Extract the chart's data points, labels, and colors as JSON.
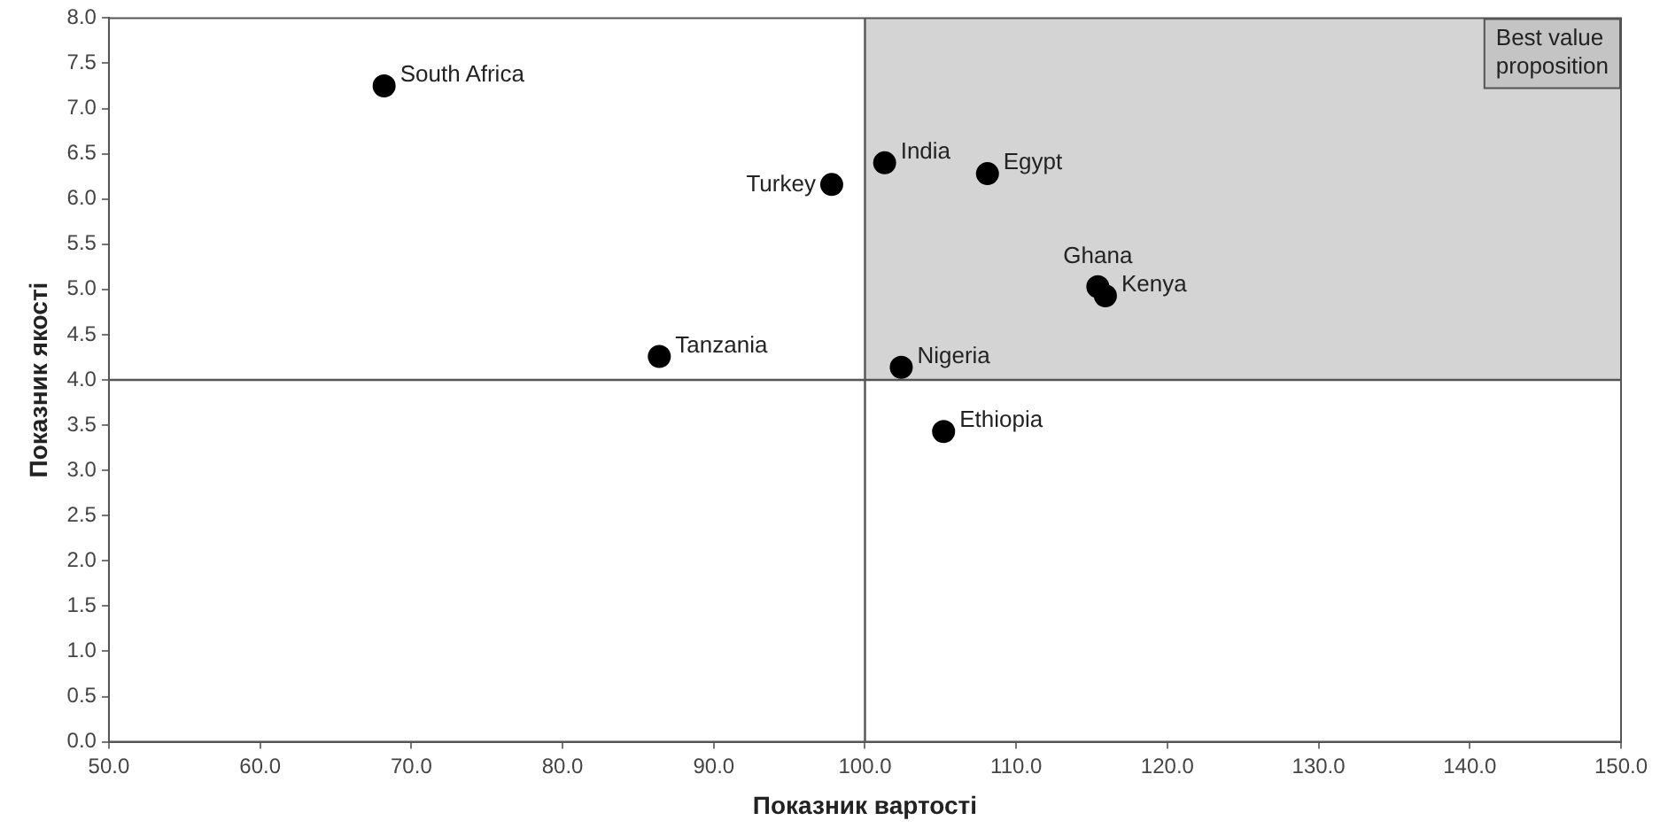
{
  "chart_data": {
    "type": "scatter",
    "xlabel": "Показник вартості",
    "ylabel": "Показник якості",
    "x": [
      68.2,
      86.4,
      97.8,
      101.3,
      108.1,
      115.4,
      115.9,
      102.4,
      105.2
    ],
    "series": [
      {
        "color": "#000000",
        "values": [
          7.25,
          4.26,
          6.16,
          6.4,
          6.28,
          5.03,
          4.93,
          4.14,
          3.43
        ]
      }
    ],
    "annotations": [
      {
        "text": "South Africa",
        "x": 68.2,
        "y": 7.25
      },
      {
        "text": "Tanzania",
        "x": 86.4,
        "y": 4.26
      },
      {
        "text": "Turkey",
        "x": 97.8,
        "y": 6.16
      },
      {
        "text": "India",
        "x": 101.3,
        "y": 6.4
      },
      {
        "text": "Egypt",
        "x": 108.1,
        "y": 6.28
      },
      {
        "text": "Ghana",
        "x": 115.4,
        "y": 5.03
      },
      {
        "text": "Kenya",
        "x": 115.9,
        "y": 4.93
      },
      {
        "text": "Nigeria",
        "x": 102.4,
        "y": 4.14
      },
      {
        "text": "Ethiopia",
        "x": 105.2,
        "y": 3.43
      }
    ],
    "ref_lines": [
      {
        "axis": "x",
        "value": 100,
        "color": "#555555"
      },
      {
        "axis": "y",
        "value": 4,
        "color": "#555555"
      }
    ],
    "bands": [
      {
        "axis": "x",
        "from": 100,
        "to": 150,
        "label": "Best value proposition",
        "color": "#d4d4d4"
      }
    ],
    "xlim": [
      50,
      150
    ],
    "xticks": [
      {
        "value": 50,
        "label": "50.0"
      },
      {
        "value": 60,
        "label": "60.0"
      },
      {
        "value": 70,
        "label": "70.0"
      },
      {
        "value": 80,
        "label": "80.0"
      },
      {
        "value": 90,
        "label": "90.0"
      },
      {
        "value": 100,
        "label": "100.0"
      },
      {
        "value": 110,
        "label": "110.0"
      },
      {
        "value": 120,
        "label": "120.0"
      },
      {
        "value": 130,
        "label": "130.0"
      },
      {
        "value": 140,
        "label": "140.0"
      },
      {
        "value": 150,
        "label": "150.0"
      }
    ],
    "ylim": [
      0,
      8
    ],
    "yticks": [
      {
        "value": 0,
        "label": "0.0"
      },
      {
        "value": 0.5,
        "label": "0.5"
      },
      {
        "value": 1,
        "label": "1.0"
      },
      {
        "value": 1.5,
        "label": "1.5"
      },
      {
        "value": 2,
        "label": "2.0"
      },
      {
        "value": 2.5,
        "label": "2.5"
      },
      {
        "value": 3,
        "label": "3.0"
      },
      {
        "value": 3.5,
        "label": "3.5"
      },
      {
        "value": 4,
        "label": "4.0"
      },
      {
        "value": 4.5,
        "label": "4.5"
      },
      {
        "value": 5,
        "label": "5.0"
      },
      {
        "value": 5.5,
        "label": "5.5"
      },
      {
        "value": 6,
        "label": "6.0"
      },
      {
        "value": 6.5,
        "label": "6.5"
      },
      {
        "value": 7,
        "label": "7.0"
      },
      {
        "value": 7.5,
        "label": "7.5"
      },
      {
        "value": 8,
        "label": "8.0"
      }
    ],
    "grid": false,
    "legend": false,
    "marker": "circle"
  }
}
